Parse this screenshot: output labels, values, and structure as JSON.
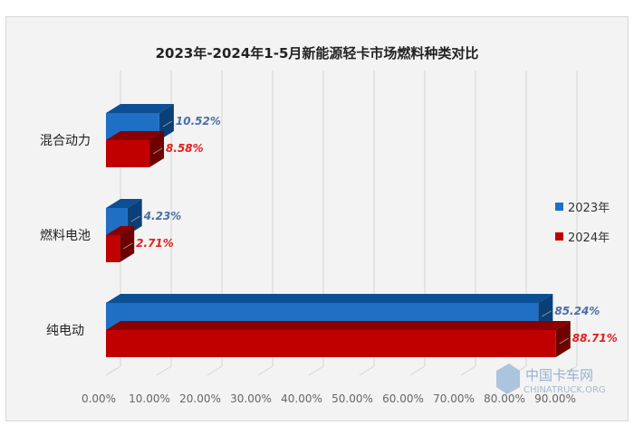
{
  "chart_data": {
    "type": "bar",
    "orientation": "horizontal",
    "title": "2023年-2024年1-5月新能源轻卡市场燃料种类对比",
    "categories": [
      "混合动力",
      "燃料电池",
      "纯电动"
    ],
    "series": [
      {
        "name": "2023年",
        "color": "#1f6fc5",
        "values": [
          10.52,
          4.23,
          85.24
        ],
        "labels": [
          "10.52%",
          "4.23%",
          "85.24%"
        ]
      },
      {
        "name": "2024年",
        "color": "#c00000",
        "values": [
          8.58,
          2.71,
          88.71
        ],
        "labels": [
          "8.58%",
          "2.71%",
          "88.71%"
        ]
      }
    ],
    "xlim": [
      0,
      90
    ],
    "xticks": [
      "0.00%",
      "10.00%",
      "20.00%",
      "30.00%",
      "40.00%",
      "50.00%",
      "60.00%",
      "70.00%",
      "80.00%",
      "90.00%"
    ],
    "grid": true,
    "legend": "right"
  },
  "watermark": "中国卡车网 CHINATRUCK.ORG"
}
